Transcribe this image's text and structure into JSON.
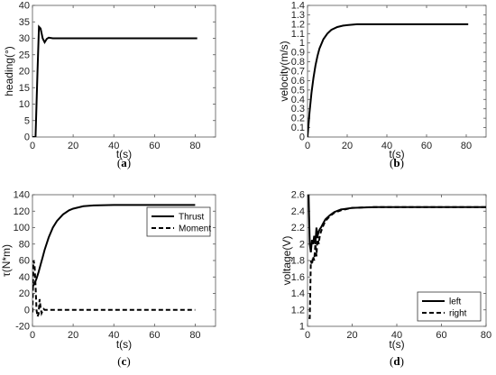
{
  "chart_data": [
    {
      "type": "line",
      "panel_label": "a",
      "xlabel": "t(s)",
      "ylabel": "heading(°)",
      "xlim": [
        0,
        90
      ],
      "ylim": [
        0,
        40
      ],
      "xticks": [
        0,
        20,
        40,
        60,
        80
      ],
      "yticks": [
        0,
        5,
        10,
        15,
        20,
        25,
        30,
        35,
        40
      ],
      "grid": false,
      "legend": null,
      "series": [
        {
          "style": "solid",
          "x": [
            0,
            1.5,
            2.5,
            3.2,
            4,
            5,
            6,
            7,
            8,
            10,
            15,
            20,
            40,
            60,
            81
          ],
          "y": [
            0,
            0,
            20,
            33.5,
            33,
            30,
            28.8,
            29.8,
            30.2,
            30,
            30,
            30,
            30,
            30,
            30
          ]
        }
      ]
    },
    {
      "type": "line",
      "panel_label": "b",
      "xlabel": "t(s)",
      "ylabel": "velocity(m/s)",
      "xlim": [
        0,
        90
      ],
      "ylim": [
        0,
        1.4
      ],
      "xticks": [
        0,
        20,
        40,
        60,
        80
      ],
      "yticks": [
        0,
        0.1,
        0.2,
        0.3,
        0.4,
        0.5,
        0.6,
        0.7,
        0.8,
        0.9,
        1,
        1.1,
        1.2,
        1.3,
        1.4
      ],
      "grid": false,
      "legend": null,
      "series": [
        {
          "style": "solid",
          "x": [
            0,
            1,
            2,
            3,
            4,
            5,
            6,
            8,
            10,
            12,
            15,
            18,
            20,
            25,
            30,
            40,
            60,
            81
          ],
          "y": [
            0,
            0.26,
            0.47,
            0.63,
            0.76,
            0.86,
            0.94,
            1.04,
            1.1,
            1.14,
            1.17,
            1.185,
            1.19,
            1.2,
            1.2,
            1.2,
            1.2,
            1.2
          ]
        }
      ]
    },
    {
      "type": "line",
      "panel_label": "c",
      "xlabel": "t(s)",
      "ylabel": "τ(N*m)",
      "xlim": [
        0,
        90
      ],
      "ylim": [
        -20,
        140
      ],
      "xticks": [
        0,
        20,
        40,
        60,
        80
      ],
      "yticks": [
        -20,
        0,
        20,
        40,
        60,
        80,
        100,
        120,
        140
      ],
      "grid": false,
      "legend": "top-right",
      "series": [
        {
          "name": "Thrust",
          "style": "solid",
          "x": [
            0,
            1,
            2,
            3,
            4,
            5,
            6,
            8,
            10,
            12,
            15,
            18,
            20,
            25,
            30,
            40,
            60,
            80
          ],
          "y": [
            28,
            32,
            38,
            46,
            55,
            64,
            73,
            88,
            100,
            108,
            116,
            121,
            123,
            126,
            127,
            127.5,
            127.5,
            127.5
          ]
        },
        {
          "name": "Moment",
          "style": "dashed",
          "x": [
            0,
            0.5,
            1,
            1.5,
            2,
            2.5,
            3,
            3.5,
            4,
            4.5,
            5,
            5.5,
            6,
            7,
            8,
            10,
            20,
            40,
            60,
            80
          ],
          "y": [
            -3,
            60,
            55,
            30,
            0,
            -8,
            -5,
            13,
            3,
            -4,
            -1,
            1,
            0,
            0,
            0,
            0,
            0,
            0,
            0,
            0
          ]
        }
      ]
    },
    {
      "type": "line",
      "panel_label": "d",
      "xlabel": "t(s)",
      "ylabel": "voltage(V)",
      "xlim": [
        0,
        80
      ],
      "ylim": [
        1,
        2.6
      ],
      "xticks": [
        0,
        20,
        40,
        60,
        80
      ],
      "yticks": [
        1,
        1.2,
        1.4,
        1.6,
        1.8,
        2,
        2.2,
        2.4,
        2.6
      ],
      "grid": false,
      "legend": "bottom-right",
      "series": [
        {
          "name": "left",
          "style": "solid",
          "x": [
            0.5,
            1,
            1.5,
            2,
            2.5,
            3,
            3.5,
            4,
            4.5,
            5,
            5.5,
            6,
            7,
            8,
            10,
            12,
            15,
            20,
            30,
            40,
            60,
            80
          ],
          "y": [
            2.6,
            2.0,
            1.9,
            2.05,
            2.0,
            2.1,
            2.0,
            2.2,
            2.1,
            2.15,
            2.18,
            2.2,
            2.25,
            2.3,
            2.35,
            2.39,
            2.42,
            2.44,
            2.45,
            2.45,
            2.45,
            2.45
          ]
        },
        {
          "name": "right",
          "style": "dashed",
          "x": [
            0.5,
            1,
            1.5,
            2,
            2.5,
            3,
            3.5,
            4,
            4.5,
            5,
            5.5,
            6,
            7,
            8,
            10,
            12,
            15,
            20,
            30,
            40,
            60,
            80
          ],
          "y": [
            1.1,
            1.1,
            1.8,
            1.75,
            1.85,
            1.8,
            2.0,
            1.85,
            2.1,
            2.0,
            2.1,
            2.15,
            2.22,
            2.28,
            2.34,
            2.38,
            2.41,
            2.44,
            2.45,
            2.45,
            2.45,
            2.45
          ]
        }
      ]
    }
  ]
}
